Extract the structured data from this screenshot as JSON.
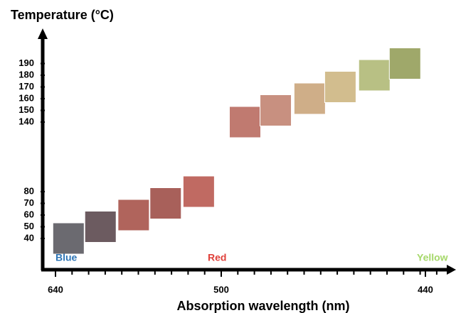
{
  "chart_data": {
    "type": "swatch",
    "title": "Temperature (°C)",
    "x_label": "Absorption wavelength (nm)",
    "x": [
      629,
      602,
      574,
      547,
      519,
      493,
      484,
      474,
      465,
      455,
      446
    ],
    "values": [
      40,
      50,
      60,
      70,
      80,
      140,
      150,
      160,
      170,
      180,
      190
    ],
    "colors": [
      "#6b6a70",
      "#6c5b60",
      "#b0645c",
      "#a8605a",
      "#c06a62",
      "#c07a70",
      "#c89080",
      "#cfae88",
      "#d2bd8e",
      "#b8c084",
      "#9fa86a"
    ],
    "xticks": [
      640,
      500,
      440
    ],
    "yticks": [
      40,
      50,
      60,
      70,
      80,
      140,
      150,
      160,
      170,
      180,
      190
    ],
    "annotations": [
      {
        "text": "Blue",
        "color": "#2e75b6"
      },
      {
        "text": "Red",
        "color": "#e0403a"
      },
      {
        "text": "Yellow",
        "color": "#a6d86a"
      }
    ]
  }
}
